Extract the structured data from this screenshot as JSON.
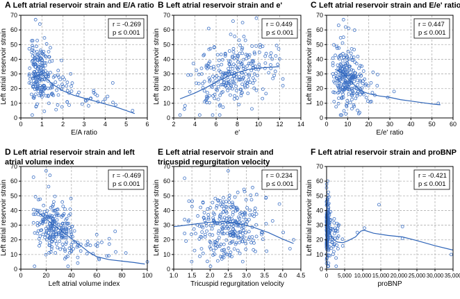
{
  "chart_data": [
    {
      "type": "scatter",
      "panel": "A",
      "title": "Left atrial reservoir strain and E/A ratio",
      "title_lines": [
        "Left atrial reservoir strain and E/A ratio"
      ],
      "xlabel": "E/A ratio",
      "ylabel": "Left atrial reservoir strain",
      "xlim": [
        0,
        6
      ],
      "ylim": [
        0,
        70
      ],
      "xticks": [
        0,
        1,
        2,
        3,
        4,
        5,
        6
      ],
      "xticklabels": [
        "0",
        "1",
        "2",
        "3",
        "4",
        "5",
        "6"
      ],
      "yticks": [
        0,
        10,
        20,
        30,
        40,
        50,
        60,
        70
      ],
      "stats": {
        "r": "r = -0.269",
        "p": "p ≤ 0.001"
      },
      "points": {
        "seed": 11,
        "clusters": [
          {
            "n": 170,
            "mx": 0.85,
            "sx": 0.22,
            "my": 30,
            "sy": 10,
            "xmin": 0.4,
            "xmax": 1.4
          },
          {
            "n": 40,
            "mx": 1.7,
            "sx": 0.35,
            "my": 22,
            "sy": 8,
            "xmin": 1.3,
            "xmax": 2.6
          },
          {
            "n": 22,
            "mx": 3.0,
            "sx": 0.8,
            "my": 14,
            "sy": 6,
            "xmin": 2.2,
            "xmax": 5.5
          }
        ],
        "extra": [
          [
            0.7,
            67
          ],
          [
            0.9,
            64
          ],
          [
            5.3,
            5
          ],
          [
            4.5,
            9
          ],
          [
            3.9,
            11
          ]
        ]
      },
      "fit": [
        [
          0.5,
          27
        ],
        [
          1.0,
          30
        ],
        [
          1.5,
          23
        ],
        [
          2.0,
          18.5
        ],
        [
          2.5,
          15.5
        ],
        [
          3.0,
          13.5
        ],
        [
          3.5,
          11.5
        ],
        [
          4.0,
          9.5
        ],
        [
          4.5,
          7.5
        ],
        [
          5.0,
          5
        ],
        [
          5.4,
          3
        ]
      ]
    },
    {
      "type": "scatter",
      "panel": "B",
      "title": "Left atrial reservoir strain and e'",
      "title_lines": [
        "Left atrial reservoir strain and e'"
      ],
      "xlabel": "e'",
      "ylabel": "Left atrial reservoir strain",
      "xlim": [
        2,
        14
      ],
      "ylim": [
        0,
        70
      ],
      "xticks": [
        2,
        4,
        6,
        8,
        10,
        12,
        14
      ],
      "xticklabels": [
        "2",
        "4",
        "6",
        "8",
        "10",
        "12",
        "14"
      ],
      "yticks": [
        0,
        10,
        20,
        30,
        40,
        50,
        60,
        70
      ],
      "stats": {
        "r": "r = 0.449",
        "p": "p ≤ 0.001"
      },
      "points": {
        "seed": 23,
        "clusters": [
          {
            "n": 260,
            "mx": 7.4,
            "sx": 1.9,
            "my": 29,
            "sy": 11,
            "xmin": 2.6,
            "xmax": 12.3,
            "slope": 2.2
          }
        ],
        "extra": [
          [
            5.3,
            61
          ],
          [
            7.6,
            66
          ],
          [
            8.5,
            65
          ],
          [
            3.0,
            6
          ],
          [
            11.9,
            47
          ]
        ]
      },
      "fit": [
        [
          2.6,
          13
        ],
        [
          4.0,
          17
        ],
        [
          5.0,
          20.5
        ],
        [
          6.0,
          24.5
        ],
        [
          7.0,
          28
        ],
        [
          8.0,
          31
        ],
        [
          9.0,
          33
        ],
        [
          10.0,
          34
        ],
        [
          11.0,
          34.5
        ],
        [
          12.0,
          35
        ]
      ]
    },
    {
      "type": "scatter",
      "panel": "C",
      "title": "Left atrial reservoir strain and E/e' ratio",
      "title_lines": [
        "Left atrial reservoir strain and E/e' ratio"
      ],
      "xlabel": "E/e' ratio",
      "ylabel": "Left atrial reservoir strain",
      "xlim": [
        0,
        60
      ],
      "ylim": [
        0,
        70
      ],
      "xticks": [
        0,
        10,
        20,
        30,
        40,
        50,
        60
      ],
      "xticklabels": [
        "0",
        "10",
        "20",
        "30",
        "40",
        "50",
        "60"
      ],
      "yticks": [
        0,
        10,
        20,
        30,
        40,
        50,
        60,
        70
      ],
      "stats": {
        "r": "r = 0.447",
        "p": "p ≤ 0.001"
      },
      "points": {
        "seed": 37,
        "clusters": [
          {
            "n": 190,
            "mx": 9,
            "sx": 2.8,
            "my": 29,
            "sy": 11,
            "xmin": 3,
            "xmax": 16
          },
          {
            "n": 55,
            "mx": 16,
            "sx": 4,
            "my": 20,
            "sy": 7,
            "xmin": 12,
            "xmax": 28
          }
        ],
        "extra": [
          [
            8,
            67
          ],
          [
            9,
            62
          ],
          [
            53,
            10
          ],
          [
            29,
            14
          ],
          [
            32,
            18
          ],
          [
            24,
            22
          ]
        ]
      },
      "fit": [
        [
          4,
          33
        ],
        [
          6,
          32
        ],
        [
          8,
          30
        ],
        [
          10,
          27
        ],
        [
          12,
          24
        ],
        [
          14,
          21.5
        ],
        [
          16,
          19
        ],
        [
          18,
          17.5
        ],
        [
          20,
          16.5
        ],
        [
          25,
          15
        ],
        [
          30,
          14
        ],
        [
          35,
          12.5
        ],
        [
          40,
          11.5
        ],
        [
          45,
          10.5
        ],
        [
          50,
          9.5
        ],
        [
          54,
          9
        ]
      ]
    },
    {
      "type": "scatter",
      "panel": "D",
      "title": "Left atrial reservoir strain and left atrial volume index",
      "title_lines": [
        "Left atrial reservoir strain and left",
        "atrial volume index"
      ],
      "xlabel": "Left atrial volume index",
      "ylabel": "Left atrial reservoir strain",
      "xlim": [
        0,
        100
      ],
      "ylim": [
        0,
        70
      ],
      "xticks": [
        0,
        20,
        40,
        60,
        80,
        100
      ],
      "xticklabels": [
        "0",
        "20",
        "40",
        "60",
        "80",
        "100"
      ],
      "yticks": [
        0,
        10,
        20,
        30,
        40,
        50,
        60,
        70
      ],
      "stats": {
        "r": "r = -0.469",
        "p": "p ≤ 0.001"
      },
      "points": {
        "seed": 41,
        "clusters": [
          {
            "n": 210,
            "mx": 27,
            "sx": 8,
            "my": 29,
            "sy": 10,
            "xmin": 10,
            "xmax": 45,
            "slope": -0.35
          },
          {
            "n": 30,
            "mx": 50,
            "sx": 10,
            "my": 16,
            "sy": 6,
            "xmin": 40,
            "xmax": 75
          }
        ],
        "extra": [
          [
            20,
            67
          ],
          [
            23,
            64
          ],
          [
            100,
            5
          ],
          [
            83,
            11
          ],
          [
            68,
            9
          ]
        ]
      },
      "fit": [
        [
          12,
          40
        ],
        [
          18,
          35.5
        ],
        [
          24,
          31.5
        ],
        [
          30,
          27.5
        ],
        [
          36,
          23.5
        ],
        [
          42,
          19.5
        ],
        [
          48,
          15.5
        ],
        [
          54,
          11.5
        ],
        [
          60,
          8.5
        ],
        [
          70,
          6.5
        ],
        [
          80,
          5.5
        ],
        [
          90,
          4.5
        ],
        [
          98,
          3.5
        ]
      ]
    },
    {
      "type": "scatter",
      "panel": "E",
      "title": "Left atrial reservoir strain and tricuspid regurgitation velocity",
      "title_lines": [
        "Left atrial reservoir strain and",
        "tricuspid regurgitation velocity"
      ],
      "xlabel": "Tricuspid regurgitation velocity",
      "ylabel": "Left atrial reservoir strain",
      "xlim": [
        1.0,
        4.5
      ],
      "ylim": [
        0,
        70
      ],
      "xticks": [
        1.0,
        1.5,
        2.0,
        2.5,
        3.0,
        3.5,
        4.0,
        4.5
      ],
      "xticklabels": [
        "1.0",
        "1.5",
        "2.0",
        "2.5",
        "3.0",
        "3.5",
        "4.0",
        "4.5"
      ],
      "yticks": [
        0,
        10,
        20,
        30,
        40,
        50,
        60,
        70
      ],
      "stats": {
        "r": "r = 0.234",
        "p": "p ≤ 0.001"
      },
      "points": {
        "seed": 53,
        "clusters": [
          {
            "n": 280,
            "mx": 2.45,
            "sx": 0.48,
            "my": 29,
            "sy": 11,
            "xmin": 1.3,
            "xmax": 4.3
          }
        ],
        "extra": [
          [
            1.3,
            62
          ],
          [
            2.5,
            67
          ],
          [
            4.3,
            20
          ],
          [
            4.2,
            14
          ]
        ]
      },
      "fit": [
        [
          1.0,
          29
        ],
        [
          1.5,
          30.5
        ],
        [
          2.0,
          32
        ],
        [
          2.4,
          32.5
        ],
        [
          2.8,
          31
        ],
        [
          3.2,
          28.5
        ],
        [
          3.6,
          25
        ],
        [
          4.0,
          20.5
        ],
        [
          4.3,
          17.5
        ]
      ]
    },
    {
      "type": "scatter",
      "panel": "F",
      "title": "Left atrial reservoir strain and proBNP",
      "title_lines": [
        "Left atrial reservoir strain and proBNP"
      ],
      "xlabel": "proBNP",
      "ylabel": "Left atrial reservoir strain",
      "xlim": [
        0,
        35000
      ],
      "ylim": [
        0,
        70
      ],
      "xticks": [
        0,
        5000,
        10000,
        15000,
        20000,
        25000,
        30000,
        35000
      ],
      "xticklabels": [
        "0",
        "5,000",
        "10,000",
        "15,000",
        "20,000",
        "25,000",
        "30,000",
        "35,000"
      ],
      "yticks": [
        0,
        10,
        20,
        30,
        40,
        50,
        60,
        70
      ],
      "stats": {
        "r": "r = -0.421",
        "p": "p ≤ 0.001"
      },
      "points": {
        "seed": 67,
        "clusters": [
          {
            "n": 150,
            "mx": 250,
            "sx": 350,
            "my": 30,
            "sy": 11,
            "xmin": 0,
            "xmax": 1200
          },
          {
            "n": 35,
            "mx": 2200,
            "sx": 1200,
            "my": 20,
            "sy": 8,
            "xmin": 800,
            "xmax": 5500
          }
        ],
        "extra": [
          [
            300,
            60
          ],
          [
            8500,
            25
          ],
          [
            10500,
            28
          ],
          [
            14500,
            44
          ],
          [
            21000,
            21
          ],
          [
            21000,
            29
          ],
          [
            34500,
            10
          ]
        ]
      },
      "fit": [
        [
          0,
          40
        ],
        [
          400,
          31
        ],
        [
          1000,
          24
        ],
        [
          2000,
          20
        ],
        [
          3000,
          18.5
        ],
        [
          4500,
          18
        ],
        [
          6000,
          19.5
        ],
        [
          8000,
          22
        ],
        [
          9500,
          26
        ],
        [
          10500,
          26.5
        ],
        [
          13000,
          24.5
        ],
        [
          17000,
          23
        ],
        [
          21000,
          22
        ],
        [
          25000,
          19.5
        ],
        [
          30000,
          16
        ],
        [
          35000,
          13
        ]
      ]
    }
  ]
}
